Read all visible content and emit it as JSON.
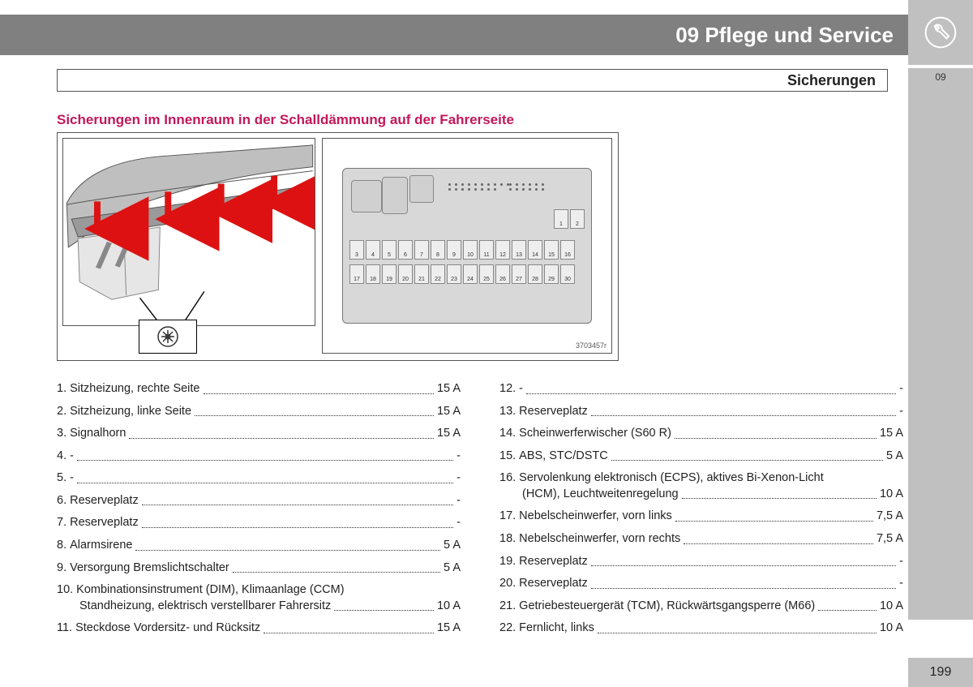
{
  "header": {
    "chapter_title": "09 Pflege und Service",
    "section_title": "Sicherungen",
    "side_chapter_num": "09"
  },
  "figure": {
    "caption": "Sicherungen im Innenraum in der Schalldämmung auf der Fahrerseite",
    "reference": "3703457r",
    "fuse_rows": {
      "top_pair": [
        "1",
        "2"
      ],
      "row_a": [
        "3",
        "4",
        "5",
        "6",
        "7",
        "8",
        "9",
        "10",
        "11",
        "12",
        "13",
        "14",
        "15",
        "16"
      ],
      "row_b": [
        "17",
        "18",
        "19",
        "20",
        "21",
        "22",
        "23",
        "24",
        "25",
        "26",
        "27",
        "28",
        "29",
        "30"
      ]
    }
  },
  "list": {
    "left": [
      {
        "n": "1.",
        "label": "Sitzheizung, rechte Seite",
        "amp": "15 A"
      },
      {
        "n": "2.",
        "label": "Sitzheizung, linke Seite",
        "amp": "15 A"
      },
      {
        "n": "3.",
        "label": "Signalhorn",
        "amp": "15 A"
      },
      {
        "n": "4.",
        "label": "-",
        "amp": "-"
      },
      {
        "n": "5.",
        "label": "-",
        "amp": "-"
      },
      {
        "n": "6.",
        "label": "Reserveplatz",
        "amp": "-"
      },
      {
        "n": "7.",
        "label": "Reserveplatz",
        "amp": "-"
      },
      {
        "n": "8.",
        "label": "Alarmsirene",
        "amp": "5 A"
      },
      {
        "n": "9.",
        "label": "Versorgung Bremslichtschalter",
        "amp": "5 A"
      },
      {
        "n": "10.",
        "label": "Kombinationsinstrument (DIM), Klimaanlage (CCM)",
        "label2": "Standheizung, elektrisch verstellbarer Fahrersitz",
        "amp": "10 A",
        "multi": true
      },
      {
        "n": "11.",
        "label": "Steckdose Vordersitz- und Rücksitz",
        "amp": "15 A"
      }
    ],
    "right": [
      {
        "n": "12.",
        "label": "-",
        "amp": "-"
      },
      {
        "n": "13.",
        "label": "Reserveplatz",
        "amp": "-"
      },
      {
        "n": "14.",
        "label": "Scheinwerferwischer (S60 R)",
        "amp": "15 A"
      },
      {
        "n": "15.",
        "label": "ABS, STC/DSTC",
        "amp": "5 A"
      },
      {
        "n": "16.",
        "label": "Servolenkung elektronisch (ECPS), aktives Bi-Xenon-Licht",
        "label2": "(HCM), Leuchtweitenregelung",
        "amp": "10 A",
        "multi": true
      },
      {
        "n": "17.",
        "label": "Nebelscheinwerfer, vorn links",
        "amp": "7,5 A"
      },
      {
        "n": "18.",
        "label": "Nebelscheinwerfer, vorn rechts",
        "amp": "7,5 A"
      },
      {
        "n": "19.",
        "label": "Reserveplatz",
        "amp": "-"
      },
      {
        "n": "20.",
        "label": "Reserveplatz",
        "amp": "-"
      },
      {
        "n": "21.",
        "label": "Getriebesteuergerät (TCM), Rückwärtsgangsperre (M66)",
        "amp": "10 A"
      },
      {
        "n": "22.",
        "label": "Fernlicht, links",
        "amp": "10 A"
      }
    ]
  },
  "page_number": "199",
  "colors": {
    "header_gray": "#808080",
    "side_gray": "#c0c0c0",
    "accent": "#c2185b"
  }
}
